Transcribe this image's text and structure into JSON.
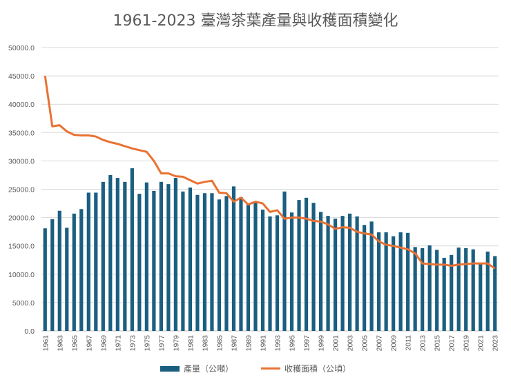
{
  "chart_data": {
    "type": "bar+line",
    "title": "1961-2023 臺灣茶葉產量與收穫面積變化",
    "ylim": [
      0,
      50000
    ],
    "yticks": [
      "0.0",
      "5000.0",
      "10000.0",
      "15000.0",
      "20000.0",
      "25000.0",
      "30000.0",
      "35000.0",
      "40000.0",
      "45000.0",
      "50000.0"
    ],
    "grid": true,
    "legend_placement": "bottom",
    "x": [
      1961,
      1962,
      1963,
      1964,
      1965,
      1966,
      1967,
      1968,
      1969,
      1970,
      1971,
      1972,
      1973,
      1974,
      1975,
      1976,
      1977,
      1978,
      1979,
      1980,
      1981,
      1982,
      1983,
      1984,
      1985,
      1986,
      1987,
      1988,
      1989,
      1990,
      1991,
      1992,
      1993,
      1994,
      1995,
      1996,
      1997,
      1998,
      1999,
      2000,
      2001,
      2002,
      2003,
      2004,
      2005,
      2006,
      2007,
      2008,
      2009,
      2010,
      2011,
      2012,
      2013,
      2014,
      2015,
      2016,
      2017,
      2018,
      2019,
      2020,
      2021,
      2022,
      2023
    ],
    "series": [
      {
        "name": "產量（公噸）",
        "type": "bar",
        "color": "#1a5e80",
        "values": [
          18100,
          19700,
          21200,
          18200,
          20700,
          21500,
          24400,
          24400,
          26300,
          27500,
          27000,
          26300,
          28700,
          24200,
          26200,
          24700,
          26300,
          25900,
          27000,
          24600,
          25300,
          24000,
          24300,
          24300,
          23200,
          23800,
          25500,
          23600,
          22400,
          22600,
          21400,
          20200,
          20400,
          24600,
          20900,
          23100,
          23500,
          22600,
          21000,
          20300,
          19800,
          20300,
          20700,
          20200,
          18700,
          19300,
          17400,
          17400,
          16700,
          17400,
          17300,
          14800,
          14600,
          15100,
          14300,
          12900,
          13400,
          14700,
          14600,
          14400,
          11900,
          14000,
          13200
        ]
      },
      {
        "name": "收穫面積（公頃）",
        "type": "line",
        "color": "#e97132",
        "values": [
          45000,
          36100,
          36300,
          35200,
          34600,
          34500,
          34500,
          34300,
          33700,
          33300,
          33000,
          32600,
          32200,
          31900,
          31600,
          30000,
          27800,
          27800,
          27300,
          27200,
          26600,
          26000,
          26300,
          26500,
          24400,
          24300,
          22800,
          23500,
          22300,
          22800,
          22500,
          21000,
          21300,
          19800,
          20000,
          20000,
          19800,
          19400,
          19300,
          18800,
          18000,
          18300,
          18200,
          17500,
          17200,
          17000,
          15800,
          15200,
          15000,
          14700,
          14400,
          13700,
          11900,
          11800,
          11700,
          11700,
          11500,
          11700,
          11800,
          11900,
          11900,
          11900,
          11000
        ]
      }
    ]
  }
}
